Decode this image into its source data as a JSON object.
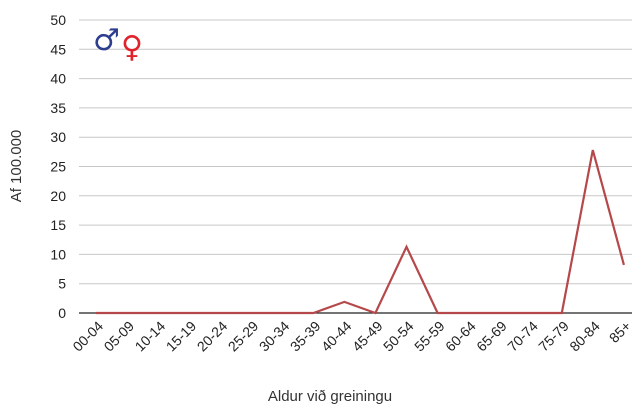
{
  "chart_data": {
    "type": "line",
    "title": "",
    "xlabel": "Aldur við greiningu",
    "ylabel": "Af 100.000",
    "ylim": [
      0,
      50
    ],
    "yticks": [
      0,
      5,
      10,
      15,
      20,
      25,
      30,
      35,
      40,
      45,
      50
    ],
    "grid": true,
    "categories": [
      "00-04",
      "05-09",
      "10-14",
      "15-19",
      "20-24",
      "25-29",
      "30-34",
      "35-39",
      "40-44",
      "45-49",
      "50-54",
      "55-59",
      "60-64",
      "65-69",
      "70-74",
      "75-79",
      "80-84",
      "85+"
    ],
    "series": [
      {
        "color": "#b5484a",
        "values": [
          0,
          0,
          0,
          0,
          0,
          0,
          0,
          0,
          1.9,
          0,
          11.3,
          0,
          0,
          0,
          0,
          0,
          27.8,
          8.2
        ]
      }
    ],
    "legend_symbols": [
      {
        "icon": "male-symbol-icon",
        "glyph": "♂",
        "color": "#2e3e8f"
      },
      {
        "icon": "female-symbol-icon",
        "glyph": "♀",
        "color": "#e0232a"
      }
    ]
  }
}
